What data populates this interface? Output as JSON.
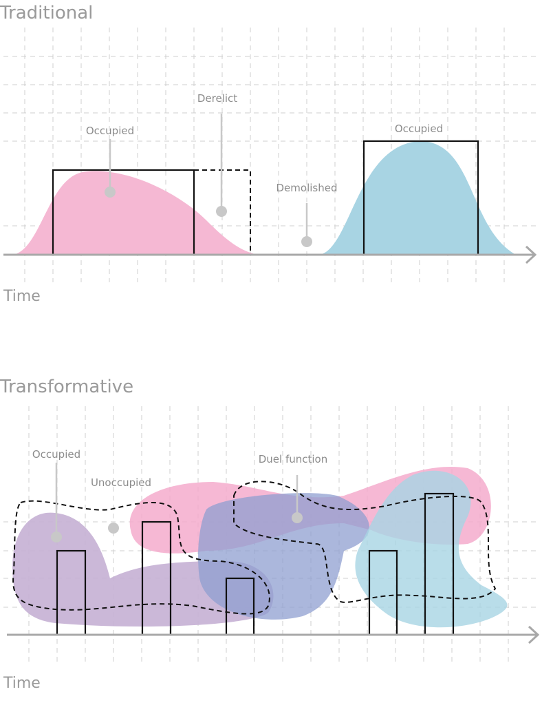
{
  "panels": [
    {
      "title": "Traditional",
      "labels": [
        "Occupied",
        "Derelict",
        "Demolished",
        "Occupied"
      ],
      "axis_label": "Time"
    },
    {
      "title": "Transformative",
      "labels": [
        "Occupied",
        "Unoccupied",
        "Duel function"
      ],
      "axis_label": "Time"
    }
  ]
}
